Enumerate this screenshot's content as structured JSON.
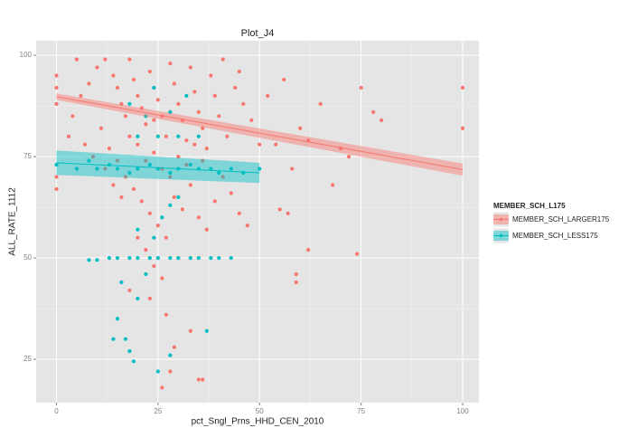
{
  "chart_data": {
    "type": "scatter",
    "title": "Plot_J4",
    "x_label": "pct_Sngl_Prns_HHD_CEN_2010",
    "y_label": "ALL_RATE_1112",
    "legend_title": "MEMBER_SCH_L175",
    "legend_position": "right",
    "grid": true,
    "xlim": [
      -5,
      104
    ],
    "ylim": [
      14.3,
      103.6
    ],
    "xticks": [
      0,
      25,
      50,
      75,
      100
    ],
    "yticks": [
      25,
      50,
      75,
      100
    ],
    "series": [
      {
        "name": "MEMBER_SCH_LARGER175",
        "color": "#F8766D",
        "x": [
          10,
          12,
          14,
          15,
          16,
          17,
          18,
          19,
          20,
          21,
          22,
          23,
          24,
          25,
          26,
          27,
          28,
          29,
          30,
          31,
          32,
          33,
          34,
          35,
          36,
          37,
          38,
          39,
          40,
          42,
          44,
          46,
          48,
          50,
          52,
          45,
          41,
          8,
          6,
          4,
          3,
          7,
          9,
          11,
          13,
          15,
          17,
          19,
          21,
          23,
          25,
          27,
          29,
          31,
          33,
          35,
          37,
          39,
          41,
          43,
          45,
          47,
          22,
          24,
          26,
          28,
          30,
          32,
          18,
          20,
          24,
          28,
          34,
          36,
          16,
          14,
          12,
          20,
          22,
          24,
          26,
          30,
          18,
          23,
          27,
          29,
          33,
          35,
          36,
          26,
          28,
          0,
          0,
          0,
          0,
          0,
          5,
          55,
          57,
          59,
          59,
          62,
          68,
          70,
          72,
          74,
          75,
          78,
          80,
          100,
          100,
          60,
          65,
          58,
          54,
          56,
          62
        ],
        "values": [
          97,
          99,
          95,
          92,
          88,
          85,
          99,
          94,
          90,
          87,
          83,
          96,
          92,
          89,
          85,
          80,
          98,
          93,
          88,
          84,
          79,
          97,
          91,
          86,
          82,
          77,
          95,
          90,
          85,
          80,
          92,
          88,
          84,
          78,
          90,
          96,
          99,
          93,
          90,
          85,
          80,
          78,
          75,
          82,
          77,
          74,
          70,
          67,
          64,
          61,
          58,
          55,
          65,
          62,
          68,
          60,
          57,
          64,
          70,
          66,
          61,
          58,
          74,
          76,
          72,
          70,
          75,
          73,
          80,
          78,
          84,
          86,
          78,
          74,
          65,
          68,
          72,
          55,
          52,
          48,
          45,
          50,
          42,
          40,
          36,
          28,
          32,
          20,
          20,
          18,
          22,
          67,
          70,
          88,
          92,
          95,
          99,
          62,
          61,
          44,
          46,
          52,
          68,
          77,
          75,
          51,
          92,
          86,
          84,
          92,
          82,
          82,
          88,
          72,
          78,
          94,
          79
        ],
        "fit": {
          "x": [
            0,
            100
          ],
          "values": [
            89.8,
            71.8
          ],
          "lower": [
            89.0,
            70.3
          ],
          "upper": [
            90.6,
            73.3
          ]
        }
      },
      {
        "name": "MEMBER_SCH_LESS175",
        "color": "#00BFC4",
        "x": [
          0,
          5,
          8,
          10,
          13,
          15,
          18,
          20,
          23,
          25,
          28,
          30,
          33,
          35,
          38,
          40,
          43,
          46,
          50,
          20,
          25,
          30,
          35,
          22,
          28,
          32,
          24,
          18,
          8,
          10,
          13,
          15,
          18,
          20,
          23,
          25,
          28,
          30,
          33,
          35,
          38,
          40,
          43,
          20,
          24,
          28,
          16,
          22,
          15,
          14,
          17,
          18,
          19,
          20,
          25,
          28,
          37,
          30,
          26
        ],
        "values": [
          73,
          72,
          74,
          72,
          73,
          72,
          71,
          72,
          73,
          72,
          71,
          72,
          73,
          72,
          72,
          71,
          72,
          71,
          72,
          80,
          80,
          80,
          80,
          85,
          86,
          90,
          92,
          88,
          49.5,
          49.5,
          50,
          50,
          50,
          50,
          50,
          50,
          50,
          50,
          50,
          50,
          50,
          50,
          50,
          57,
          55,
          63,
          44,
          46,
          35,
          30,
          30,
          27,
          24.5,
          40,
          22,
          26,
          32,
          65,
          60
        ],
        "fit": {
          "x": [
            0,
            50
          ],
          "values": [
            73.5,
            71
          ],
          "lower": [
            70.5,
            68.5
          ],
          "upper": [
            76.5,
            73.5
          ]
        }
      }
    ]
  }
}
